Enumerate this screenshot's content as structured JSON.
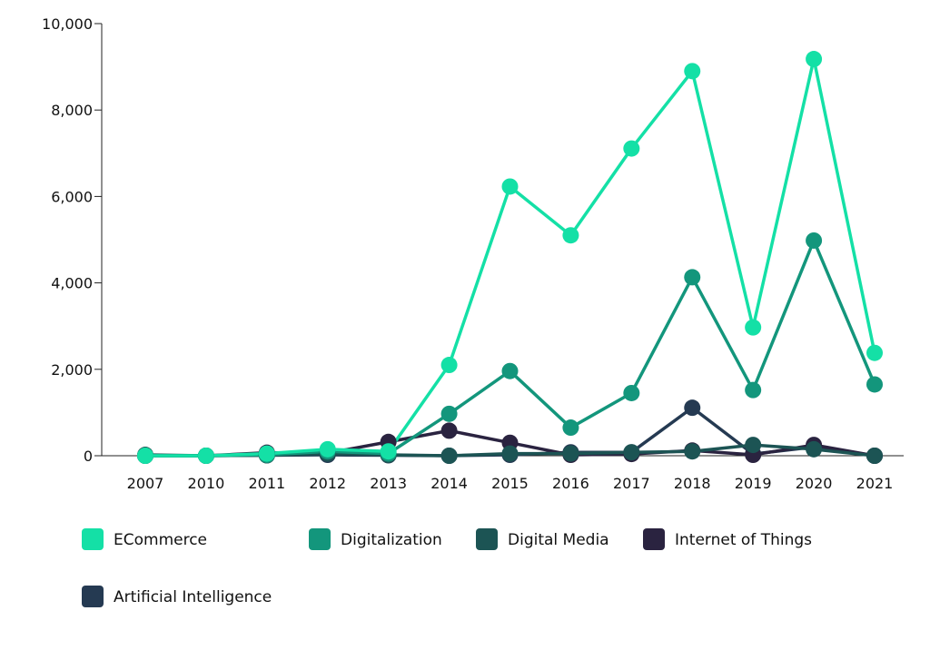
{
  "chart_data": {
    "type": "line",
    "categories": [
      "2007",
      "2010",
      "2011",
      "2012",
      "2013",
      "2014",
      "2015",
      "2016",
      "2017",
      "2018",
      "2019",
      "2020",
      "2021"
    ],
    "ylim": [
      0,
      10000
    ],
    "y_ticks": [
      0,
      2000,
      4000,
      6000,
      8000,
      10000
    ],
    "y_tick_labels": [
      "0",
      "2,000",
      "4,000",
      "6,000",
      "8,000",
      "10,000"
    ],
    "grid": false,
    "legend_position": "bottom-left",
    "series": [
      {
        "name": "ECommerce",
        "color": "#14e0a6",
        "values": [
          0,
          0,
          50,
          150,
          100,
          2100,
          6230,
          5100,
          7110,
          8900,
          2970,
          9180,
          2380
        ]
      },
      {
        "name": "Digitalization",
        "color": "#13967c",
        "values": [
          0,
          0,
          20,
          100,
          50,
          970,
          1960,
          650,
          1450,
          4130,
          1520,
          4980,
          1650
        ]
      },
      {
        "name": "Digital Media",
        "color": "#1c5454",
        "values": [
          20,
          0,
          10,
          50,
          20,
          0,
          50,
          50,
          80,
          100,
          250,
          150,
          0
        ]
      },
      {
        "name": "Internet of Things",
        "color": "#2a2340",
        "values": [
          0,
          0,
          70,
          60,
          320,
          580,
          300,
          20,
          40,
          120,
          20,
          250,
          0
        ]
      },
      {
        "name": "Artificial Intelligence",
        "color": "#253a52",
        "values": [
          0,
          0,
          10,
          20,
          10,
          0,
          20,
          80,
          80,
          1110,
          40,
          200,
          0
        ]
      }
    ]
  }
}
